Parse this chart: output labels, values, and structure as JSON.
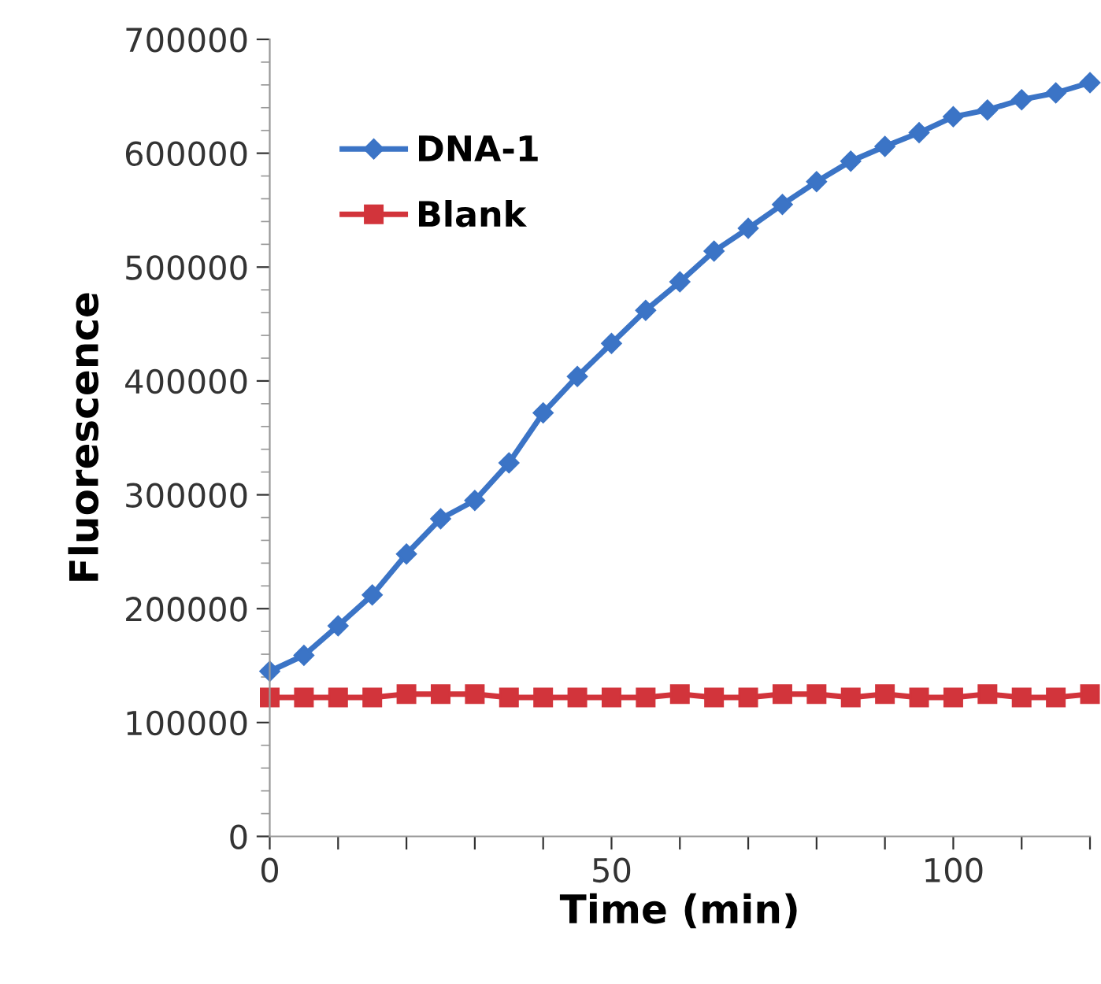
{
  "chart_data": {
    "type": "line",
    "xlabel": "Time (min)",
    "ylabel": "Fluorescence",
    "x": [
      0,
      5,
      10,
      15,
      20,
      25,
      30,
      35,
      40,
      45,
      50,
      55,
      60,
      65,
      70,
      75,
      80,
      85,
      90,
      95,
      100,
      105,
      110,
      115,
      120
    ],
    "series": [
      {
        "name": "DNA-1",
        "color": "#3b74c6",
        "marker": "diamond",
        "values": [
          145000,
          159000,
          185000,
          212000,
          248000,
          279000,
          295000,
          328000,
          372000,
          404000,
          433000,
          462000,
          487000,
          514000,
          534000,
          555000,
          575000,
          593000,
          606000,
          618000,
          632000,
          638000,
          647000,
          653000,
          662000
        ]
      },
      {
        "name": "Blank",
        "color": "#d2343b",
        "marker": "square",
        "values": [
          122000,
          122000,
          122000,
          122000,
          125000,
          125000,
          125000,
          122000,
          122000,
          122000,
          122000,
          122000,
          125000,
          122000,
          122000,
          125000,
          125000,
          122000,
          125000,
          122000,
          122000,
          125000,
          122000,
          122000,
          125000
        ]
      }
    ],
    "xlim": [
      0,
      120
    ],
    "xticks": [
      0,
      {
        "value": 10,
        "label": null
      },
      {
        "value": 20,
        "label": null
      },
      {
        "value": 30,
        "label": null
      },
      {
        "value": 40,
        "label": null
      },
      50,
      {
        "value": 60,
        "label": null
      },
      {
        "value": 70,
        "label": null
      },
      {
        "value": 80,
        "label": null
      },
      {
        "value": 90,
        "label": null
      },
      100,
      {
        "value": 110,
        "label": null
      },
      {
        "value": 120,
        "label": null
      }
    ],
    "ylim": [
      0,
      700000
    ],
    "yticks": [
      0,
      100000,
      200000,
      300000,
      400000,
      500000,
      600000,
      700000
    ],
    "grid": false,
    "legend": "top left",
    "line_style": "solid"
  }
}
